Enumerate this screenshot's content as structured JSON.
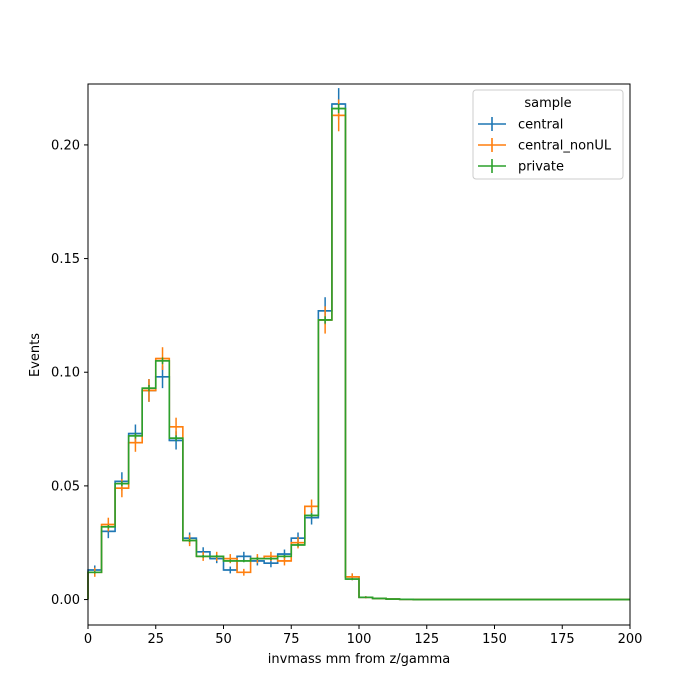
{
  "chart_data": {
    "type": "step",
    "xlabel": "invmass mm from z/gamma",
    "ylabel": "Events",
    "xlim": [
      0,
      200
    ],
    "ylim": [
      -0.0112,
      0.2268
    ],
    "grid": false,
    "x_ticks": [
      {
        "value": 0,
        "label": "0"
      },
      {
        "value": 25,
        "label": "25"
      },
      {
        "value": 50,
        "label": "50"
      },
      {
        "value": 75,
        "label": "75"
      },
      {
        "value": 100,
        "label": "100"
      },
      {
        "value": 125,
        "label": "125"
      },
      {
        "value": 150,
        "label": "150"
      },
      {
        "value": 175,
        "label": "175"
      },
      {
        "value": 200,
        "label": "200"
      }
    ],
    "y_ticks": [
      {
        "value": 0.0,
        "label": "0.00"
      },
      {
        "value": 0.05,
        "label": "0.05"
      },
      {
        "value": 0.1,
        "label": "0.10"
      },
      {
        "value": 0.15,
        "label": "0.15"
      },
      {
        "value": 0.2,
        "label": "0.20"
      }
    ],
    "bin_edges": [
      0,
      5,
      10,
      15,
      20,
      25,
      30,
      35,
      40,
      45,
      50,
      55,
      60,
      65,
      70,
      75,
      80,
      85,
      90,
      95,
      100,
      105,
      110,
      115,
      120,
      125,
      130,
      135,
      140,
      145,
      150,
      155,
      160,
      165,
      170,
      175,
      180,
      185,
      190,
      195,
      200
    ],
    "legend": {
      "title": "sample",
      "position": "upper right"
    },
    "series": [
      {
        "name": "central",
        "color": "#1f77b4",
        "values": [
          0.013,
          0.03,
          0.052,
          0.073,
          0.092,
          0.098,
          0.07,
          0.027,
          0.021,
          0.018,
          0.013,
          0.019,
          0.017,
          0.016,
          0.02,
          0.027,
          0.036,
          0.127,
          0.218,
          0.01,
          0.001,
          0.0005,
          0.0002,
          0.0001,
          0,
          0,
          0,
          0,
          0,
          0,
          0,
          0,
          0,
          0,
          0,
          0,
          0,
          0,
          0,
          0
        ],
        "errors": [
          0.002,
          0.003,
          0.004,
          0.004,
          0.005,
          0.005,
          0.004,
          0.0025,
          0.002,
          0.002,
          0.0015,
          0.002,
          0.002,
          0.0018,
          0.002,
          0.0025,
          0.003,
          0.006,
          0.007,
          0.0015,
          0.0005,
          0.0003,
          0.0002,
          0.0001,
          0,
          0,
          0,
          0,
          0,
          0,
          0,
          0,
          0,
          0,
          0,
          0,
          0,
          0,
          0,
          0
        ]
      },
      {
        "name": "central_nonUL",
        "color": "#ff7f0e",
        "values": [
          0.012,
          0.033,
          0.049,
          0.069,
          0.092,
          0.106,
          0.076,
          0.026,
          0.019,
          0.019,
          0.018,
          0.012,
          0.018,
          0.019,
          0.017,
          0.025,
          0.041,
          0.123,
          0.213,
          0.01,
          0.001,
          0.0005,
          0.0002,
          0.0001,
          0,
          0,
          0,
          0,
          0,
          0,
          0,
          0,
          0,
          0,
          0,
          0,
          0,
          0,
          0,
          0
        ],
        "errors": [
          0.002,
          0.003,
          0.004,
          0.004,
          0.005,
          0.005,
          0.004,
          0.0025,
          0.002,
          0.002,
          0.002,
          0.0015,
          0.002,
          0.002,
          0.002,
          0.0025,
          0.003,
          0.006,
          0.007,
          0.0015,
          0.0005,
          0.0003,
          0.0002,
          0.0001,
          0,
          0,
          0,
          0,
          0,
          0,
          0,
          0,
          0,
          0,
          0,
          0,
          0,
          0,
          0,
          0
        ]
      },
      {
        "name": "private",
        "color": "#2ca02c",
        "values": [
          0.012,
          0.032,
          0.051,
          0.072,
          0.093,
          0.105,
          0.071,
          0.026,
          0.019,
          0.019,
          0.017,
          0.017,
          0.018,
          0.018,
          0.019,
          0.024,
          0.037,
          0.123,
          0.216,
          0.009,
          0.001,
          0.0005,
          0.0002,
          0.0001,
          0,
          0,
          0,
          0,
          0,
          0,
          0,
          0,
          0,
          0,
          0,
          0,
          0,
          0,
          0,
          0
        ],
        "errors": [
          0.0005,
          0.0008,
          0.001,
          0.0012,
          0.0014,
          0.0015,
          0.0012,
          0.0007,
          0.0006,
          0.0006,
          0.0006,
          0.0006,
          0.0006,
          0.0006,
          0.0006,
          0.0007,
          0.0009,
          0.0016,
          0.002,
          0.0004,
          0.0002,
          0.0001,
          0.0001,
          0.0001,
          0,
          0,
          0,
          0,
          0,
          0,
          0,
          0,
          0,
          0,
          0,
          0,
          0,
          0,
          0,
          0
        ]
      }
    ]
  }
}
